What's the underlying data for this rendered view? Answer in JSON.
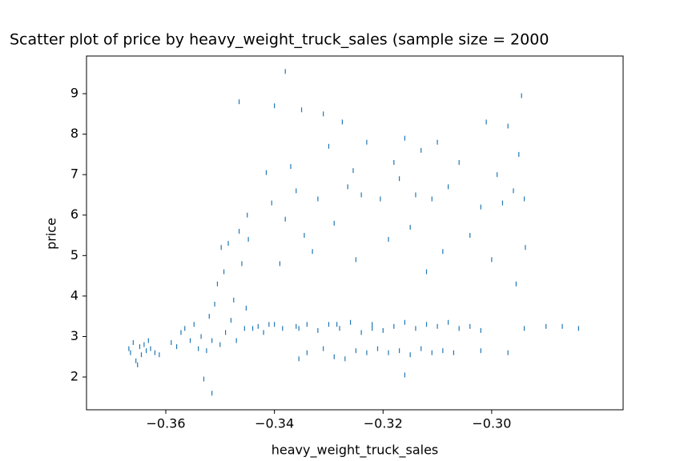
{
  "chart_data": {
    "type": "scatter",
    "title": "Scatter plot of price by heavy_weight_truck_sales (sample size = 2000",
    "x_label": "heavy_weight_truck_sales",
    "y_label": "price",
    "color": "#1f77b4",
    "xlim": [
      -0.3746,
      -0.2758
    ],
    "ylim": [
      1.19,
      9.93
    ],
    "xticks": [
      {
        "value": -0.36,
        "label": "−0.36"
      },
      {
        "value": -0.34,
        "label": "−0.34"
      },
      {
        "value": -0.32,
        "label": "−0.32"
      },
      {
        "value": -0.3,
        "label": "−0.30"
      }
    ],
    "yticks": [
      2,
      3,
      4,
      5,
      6,
      7,
      8,
      9
    ],
    "x": [
      -0.3668,
      -0.3665,
      -0.366,
      -0.3655,
      -0.3652,
      -0.3648,
      -0.3645,
      -0.364,
      -0.3636,
      -0.3632,
      -0.3628,
      -0.362,
      -0.3612,
      -0.359,
      -0.358,
      -0.3572,
      -0.3565,
      -0.3555,
      -0.3548,
      -0.354,
      -0.3535,
      -0.3525,
      -0.352,
      -0.3515,
      -0.351,
      -0.3505,
      -0.35,
      -0.3498,
      -0.3493,
      -0.349,
      -0.3485,
      -0.348,
      -0.3475,
      -0.347,
      -0.3465,
      -0.346,
      -0.3455,
      -0.3452,
      -0.345,
      -0.3448,
      -0.344,
      -0.343,
      -0.342,
      -0.341,
      -0.34,
      -0.3385,
      -0.3465,
      -0.34,
      -0.338,
      -0.3415,
      -0.3405,
      -0.339,
      -0.338,
      -0.337,
      -0.336,
      -0.3355,
      -0.335,
      -0.3345,
      -0.333,
      -0.332,
      -0.331,
      -0.33,
      -0.329,
      -0.3285,
      -0.3275,
      -0.3265,
      -0.3255,
      -0.325,
      -0.324,
      -0.323,
      -0.322,
      -0.3205,
      -0.319,
      -0.318,
      -0.317,
      -0.316,
      -0.315,
      -0.314,
      -0.313,
      -0.312,
      -0.311,
      -0.31,
      -0.309,
      -0.308,
      -0.306,
      -0.304,
      -0.302,
      -0.301,
      -0.3,
      -0.299,
      -0.298,
      -0.297,
      -0.296,
      -0.2955,
      -0.295,
      -0.2945,
      -0.294,
      -0.2938,
      -0.336,
      -0.334,
      -0.332,
      -0.33,
      -0.328,
      -0.326,
      -0.324,
      -0.322,
      -0.32,
      -0.318,
      -0.316,
      -0.314,
      -0.312,
      -0.31,
      -0.308,
      -0.306,
      -0.304,
      -0.302,
      -0.294,
      -0.29,
      -0.287,
      -0.284,
      -0.334,
      -0.331,
      -0.329,
      -0.327,
      -0.325,
      -0.323,
      -0.321,
      -0.319,
      -0.317,
      -0.315,
      -0.313,
      -0.311,
      -0.309,
      -0.307,
      -0.302,
      -0.297,
      -0.316,
      -0.353,
      -0.3515,
      -0.3355
    ],
    "y": [
      2.7,
      2.6,
      2.85,
      2.4,
      2.3,
      2.75,
      2.55,
      2.8,
      2.65,
      2.9,
      2.7,
      2.6,
      2.55,
      2.85,
      2.75,
      3.1,
      3.2,
      2.9,
      3.3,
      2.7,
      3.0,
      2.65,
      3.5,
      2.9,
      3.8,
      4.3,
      2.8,
      5.2,
      4.6,
      3.1,
      5.3,
      3.4,
      3.9,
      2.9,
      5.6,
      4.8,
      3.2,
      3.7,
      6.0,
      5.4,
      3.2,
      3.25,
      3.1,
      3.3,
      3.3,
      3.2,
      8.8,
      8.7,
      9.55,
      7.05,
      6.3,
      4.8,
      5.9,
      7.2,
      6.6,
      3.2,
      8.6,
      5.5,
      5.1,
      6.4,
      8.5,
      7.7,
      5.8,
      3.3,
      8.3,
      6.7,
      7.1,
      4.9,
      6.5,
      7.8,
      3.2,
      6.4,
      5.4,
      7.3,
      6.9,
      7.9,
      5.7,
      6.5,
      7.6,
      4.6,
      6.4,
      7.8,
      5.1,
      6.7,
      7.3,
      5.5,
      6.2,
      8.3,
      4.9,
      7.0,
      6.3,
      8.2,
      6.6,
      4.3,
      7.5,
      8.95,
      6.4,
      5.2,
      3.25,
      3.3,
      3.15,
      3.3,
      3.2,
      3.35,
      3.1,
      3.3,
      3.15,
      3.25,
      3.35,
      3.2,
      3.3,
      3.25,
      3.35,
      3.2,
      3.25,
      3.15,
      3.2,
      3.25,
      3.25,
      3.2,
      2.6,
      2.7,
      2.5,
      2.45,
      2.65,
      2.6,
      2.7,
      2.6,
      2.65,
      2.55,
      2.7,
      2.6,
      2.65,
      2.6,
      2.65,
      2.6,
      2.05,
      1.95,
      1.6,
      2.45
    ]
  }
}
